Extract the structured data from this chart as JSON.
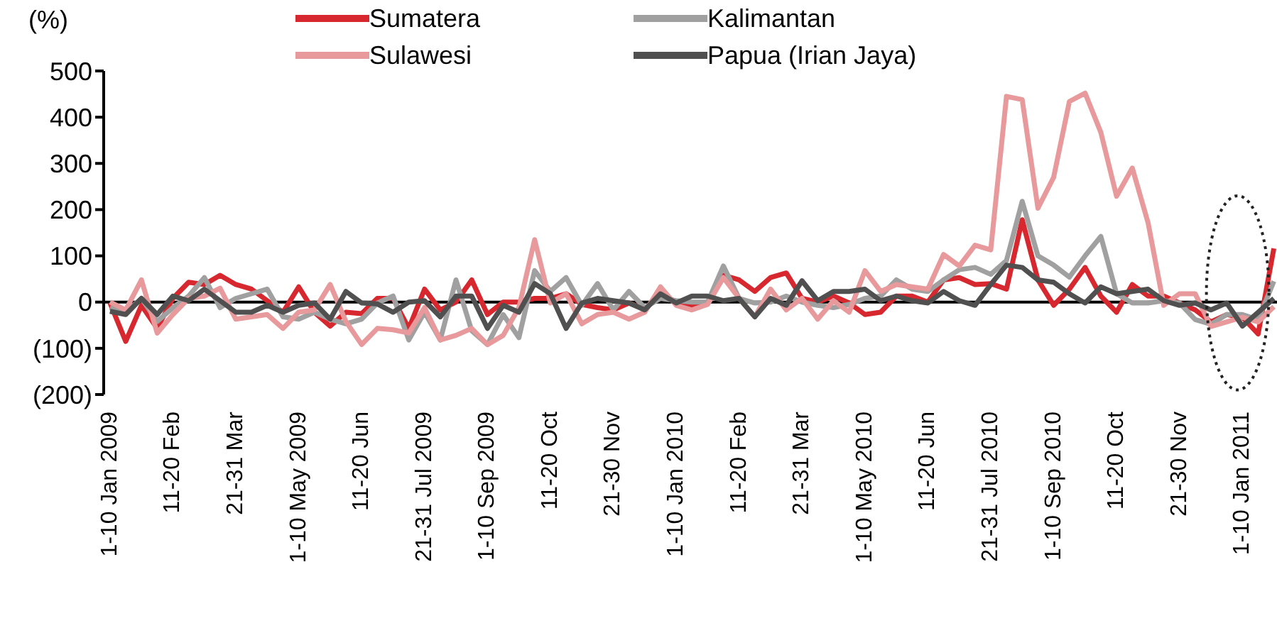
{
  "chart_data": {
    "type": "line",
    "ylabel": "(%)",
    "legend": "top",
    "marker": "none",
    "line_style": "solid",
    "categories": [
      "1-10 Jan 2009",
      null,
      null,
      null,
      "11-20 Feb",
      null,
      null,
      null,
      "21-31 Mar",
      null,
      null,
      null,
      "1-10 May 2009",
      null,
      null,
      null,
      "11-20 Jun",
      null,
      null,
      null,
      "21-31 Jul 2009",
      null,
      null,
      null,
      "1-10 Sep 2009",
      null,
      null,
      null,
      "11-20 Oct",
      null,
      null,
      null,
      "21-30 Nov",
      null,
      null,
      null,
      "1-10 Jan 2010",
      null,
      null,
      null,
      "11-20 Feb",
      null,
      null,
      null,
      "21-31 Mar",
      null,
      null,
      null,
      "1-10 May 2010",
      null,
      null,
      null,
      "11-20 Jun",
      null,
      null,
      null,
      "21-31 Jul 2010",
      null,
      null,
      null,
      "1-10 Sep 2010",
      null,
      null,
      null,
      "11-20 Oct",
      null,
      null,
      null,
      "21-30 Nov",
      null,
      null,
      null,
      "1-10 Jan 2011",
      null,
      null
    ],
    "ylim": [
      -200,
      500
    ],
    "yticks": [
      {
        "value": -200,
        "label": "(200)"
      },
      {
        "value": -100,
        "label": "(100)"
      },
      0,
      100,
      200,
      300,
      400,
      500
    ],
    "ref_lines": [
      {
        "axis": "y",
        "value": 0,
        "color": "#000000"
      }
    ],
    "series": [
      {
        "name": "Sumatera",
        "color": "#d7282f",
        "values": [
          -2,
          -85,
          -7,
          -57,
          8,
          43,
          38,
          58,
          38,
          28,
          3,
          -22,
          33,
          -22,
          -52,
          -22,
          -25,
          8,
          8,
          -57,
          28,
          -17,
          0,
          48,
          -27,
          0,
          0,
          8,
          8,
          18,
          -5,
          -12,
          -17,
          -2,
          -15,
          18,
          0,
          -7,
          0,
          58,
          48,
          23,
          53,
          63,
          8,
          0,
          13,
          -2,
          -27,
          -22,
          13,
          13,
          0,
          48,
          53,
          38,
          40,
          28,
          178,
          48,
          -7,
          28,
          75,
          13,
          -22,
          38,
          13,
          13,
          -2,
          -17,
          -43,
          -27,
          -33,
          -69,
          116
        ]
      },
      {
        "name": "Kalimantan",
        "color": "#a0a0a0",
        "values": [
          -12,
          -22,
          8,
          -42,
          -12,
          13,
          53,
          -12,
          8,
          18,
          28,
          -32,
          -37,
          -22,
          -37,
          -47,
          -37,
          -2,
          13,
          -82,
          -22,
          -82,
          48,
          -62,
          -92,
          -27,
          -77,
          68,
          23,
          53,
          -7,
          40,
          -17,
          23,
          -12,
          8,
          3,
          0,
          0,
          78,
          8,
          -2,
          0,
          13,
          0,
          -7,
          -12,
          -5,
          8,
          13,
          48,
          28,
          23,
          48,
          70,
          75,
          60,
          90,
          218,
          100,
          80,
          54,
          100,
          142,
          18,
          -2,
          -2,
          3,
          -2,
          -38,
          -48,
          -27,
          -27,
          -38,
          45
        ]
      },
      {
        "name": "Sulawesi",
        "color": "#e8999b",
        "values": [
          0,
          -17,
          48,
          -67,
          -27,
          8,
          13,
          30,
          -37,
          -32,
          -27,
          -57,
          -22,
          -17,
          38,
          -42,
          -92,
          -57,
          -60,
          -67,
          -12,
          -82,
          -72,
          -57,
          -92,
          -72,
          -12,
          135,
          -2,
          18,
          -47,
          -27,
          -22,
          -37,
          -22,
          33,
          -7,
          -17,
          -5,
          53,
          8,
          -32,
          28,
          -17,
          8,
          -37,
          3,
          -22,
          68,
          23,
          38,
          33,
          28,
          103,
          78,
          123,
          113,
          445,
          438,
          203,
          270,
          434,
          452,
          367,
          229,
          290,
          172,
          -7,
          18,
          18,
          -53,
          -43,
          -33,
          -43,
          -10
        ]
      },
      {
        "name": "Papua (Irian Jaya)",
        "color": "#505050",
        "values": [
          -20,
          -27,
          8,
          -27,
          13,
          3,
          28,
          3,
          -22,
          -22,
          -7,
          -22,
          -7,
          -2,
          -37,
          23,
          -2,
          -4,
          -22,
          0,
          3,
          -32,
          13,
          13,
          -57,
          -7,
          -22,
          40,
          18,
          -57,
          -2,
          8,
          3,
          -2,
          -17,
          18,
          -2,
          13,
          13,
          3,
          8,
          -32,
          8,
          -7,
          46,
          3,
          23,
          23,
          28,
          3,
          13,
          3,
          -2,
          23,
          3,
          -7,
          38,
          80,
          75,
          48,
          43,
          18,
          -2,
          33,
          18,
          23,
          28,
          3,
          -7,
          -2,
          -17,
          -2,
          -52,
          -22,
          8
        ]
      }
    ]
  }
}
